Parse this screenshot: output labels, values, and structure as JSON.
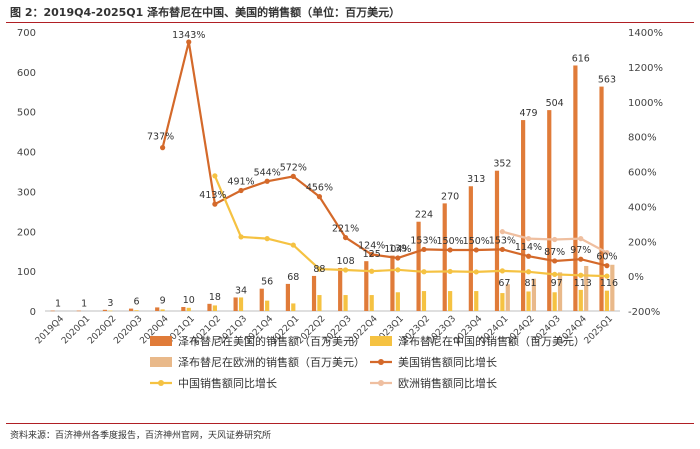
{
  "header": {
    "title": "图 2：2019Q4-2025Q1 泽布替尼在中国、美国的销售额（单位：百万美元）"
  },
  "footer": {
    "source": "资料来源：百济神州各季度报告，百济神州官网，天风证券研究所"
  },
  "chart_data": {
    "type": "bar",
    "title": "图 2：2019Q4-2025Q1 泽布替尼在中国、美国的销售额（单位：百万美元）",
    "categories": [
      "2019Q4",
      "2020Q1",
      "2020Q2",
      "2020Q3",
      "2020Q4",
      "2021Q1",
      "2021Q2",
      "2021Q3",
      "2021Q4",
      "2022Q1",
      "2022Q2",
      "2022Q3",
      "2022Q4",
      "2023Q1",
      "2023Q2",
      "2023Q3",
      "2023Q4",
      "2024Q1",
      "2024Q2",
      "2024Q3",
      "2024Q4",
      "2025Q1"
    ],
    "y_left": {
      "min": 0,
      "max": 700,
      "ticks": [
        "0",
        "100",
        "200",
        "300",
        "400",
        "500",
        "600",
        "700"
      ]
    },
    "y_right": {
      "min": -200,
      "max": 1400,
      "ticks": [
        "-200%",
        "0%",
        "200%",
        "400%",
        "600%",
        "800%",
        "1000%",
        "1200%",
        "1400%"
      ]
    },
    "series": [
      {
        "name": "泽布替尼在美国的销售额（百万美元）",
        "kind": "bar",
        "color": "#e07b39",
        "values": [
          1,
          1,
          3,
          6,
          9,
          10,
          18,
          34,
          56,
          68,
          88,
          108,
          125,
          139,
          224,
          270,
          313,
          352,
          479,
          504,
          616,
          563
        ],
        "labels": [
          "1",
          "1",
          "3",
          "6",
          "9",
          "10",
          "18",
          "34",
          "56",
          "68",
          "88",
          "108",
          "125",
          "139",
          "224",
          "270",
          "313",
          "352",
          "479",
          "504",
          "616",
          "563"
        ]
      },
      {
        "name": "泽布替尼在中国的销售额（百万美元）",
        "kind": "bar",
        "color": "#f5c242",
        "values": [
          null,
          null,
          1,
          2,
          4,
          8,
          14,
          34,
          26,
          19,
          40,
          40,
          40,
          47,
          50,
          50,
          50,
          45,
          49,
          47,
          53,
          51
        ]
      },
      {
        "name": "泽布替尼在欧洲的销售额（百万美元）",
        "kind": "bar",
        "color": "#e9b98a",
        "values": [
          null,
          null,
          null,
          null,
          null,
          null,
          null,
          null,
          null,
          null,
          null,
          null,
          null,
          null,
          null,
          null,
          null,
          67,
          81,
          97,
          113,
          116
        ],
        "labels": [
          "",
          "",
          "",
          "",
          "",
          "",
          "",
          "",
          "",
          "",
          "",
          "",
          "",
          "",
          "",
          "",
          "",
          "67",
          "81",
          "97",
          "113",
          "116"
        ]
      },
      {
        "name": "美国销售额同比增长",
        "kind": "line",
        "axis": "right",
        "color": "#d4692a",
        "values": [
          null,
          null,
          null,
          null,
          737,
          1343,
          413,
          491,
          544,
          572,
          456,
          221,
          124,
          104,
          153,
          150,
          150,
          153,
          114,
          87,
          97,
          60
        ],
        "labels": [
          "",
          "",
          "",
          "",
          "737%",
          "1343%",
          "413%",
          "491%",
          "544%",
          "572%",
          "456%",
          "221%",
          "124%",
          "104%",
          "153%",
          "150%",
          "150%",
          "153%",
          "114%",
          "87%",
          "97%",
          "60%"
        ]
      },
      {
        "name": "中国销售额同比增长",
        "kind": "line",
        "axis": "right",
        "color": "#f5c242",
        "values": [
          null,
          null,
          null,
          null,
          null,
          null,
          575,
          225,
          215,
          178,
          40,
          35,
          28,
          36,
          25,
          27,
          24,
          30,
          25,
          10,
          5,
          0
        ]
      },
      {
        "name": "欧洲销售额同比增长",
        "kind": "line",
        "axis": "right",
        "color": "#efbfa0",
        "values": [
          null,
          null,
          null,
          null,
          null,
          null,
          null,
          null,
          null,
          null,
          null,
          null,
          null,
          null,
          null,
          null,
          null,
          255,
          215,
          210,
          215,
          135
        ]
      }
    ],
    "legend": [
      "泽布替尼在美国的销售额（百万美元）",
      "泽布替尼在中国的销售额（百万美元）",
      "泽布替尼在欧洲的销售额（百万美元）",
      "美国销售额同比增长",
      "中国销售额同比增长",
      "欧洲销售额同比增长"
    ],
    "legend_position": "bottom",
    "grid": false
  }
}
